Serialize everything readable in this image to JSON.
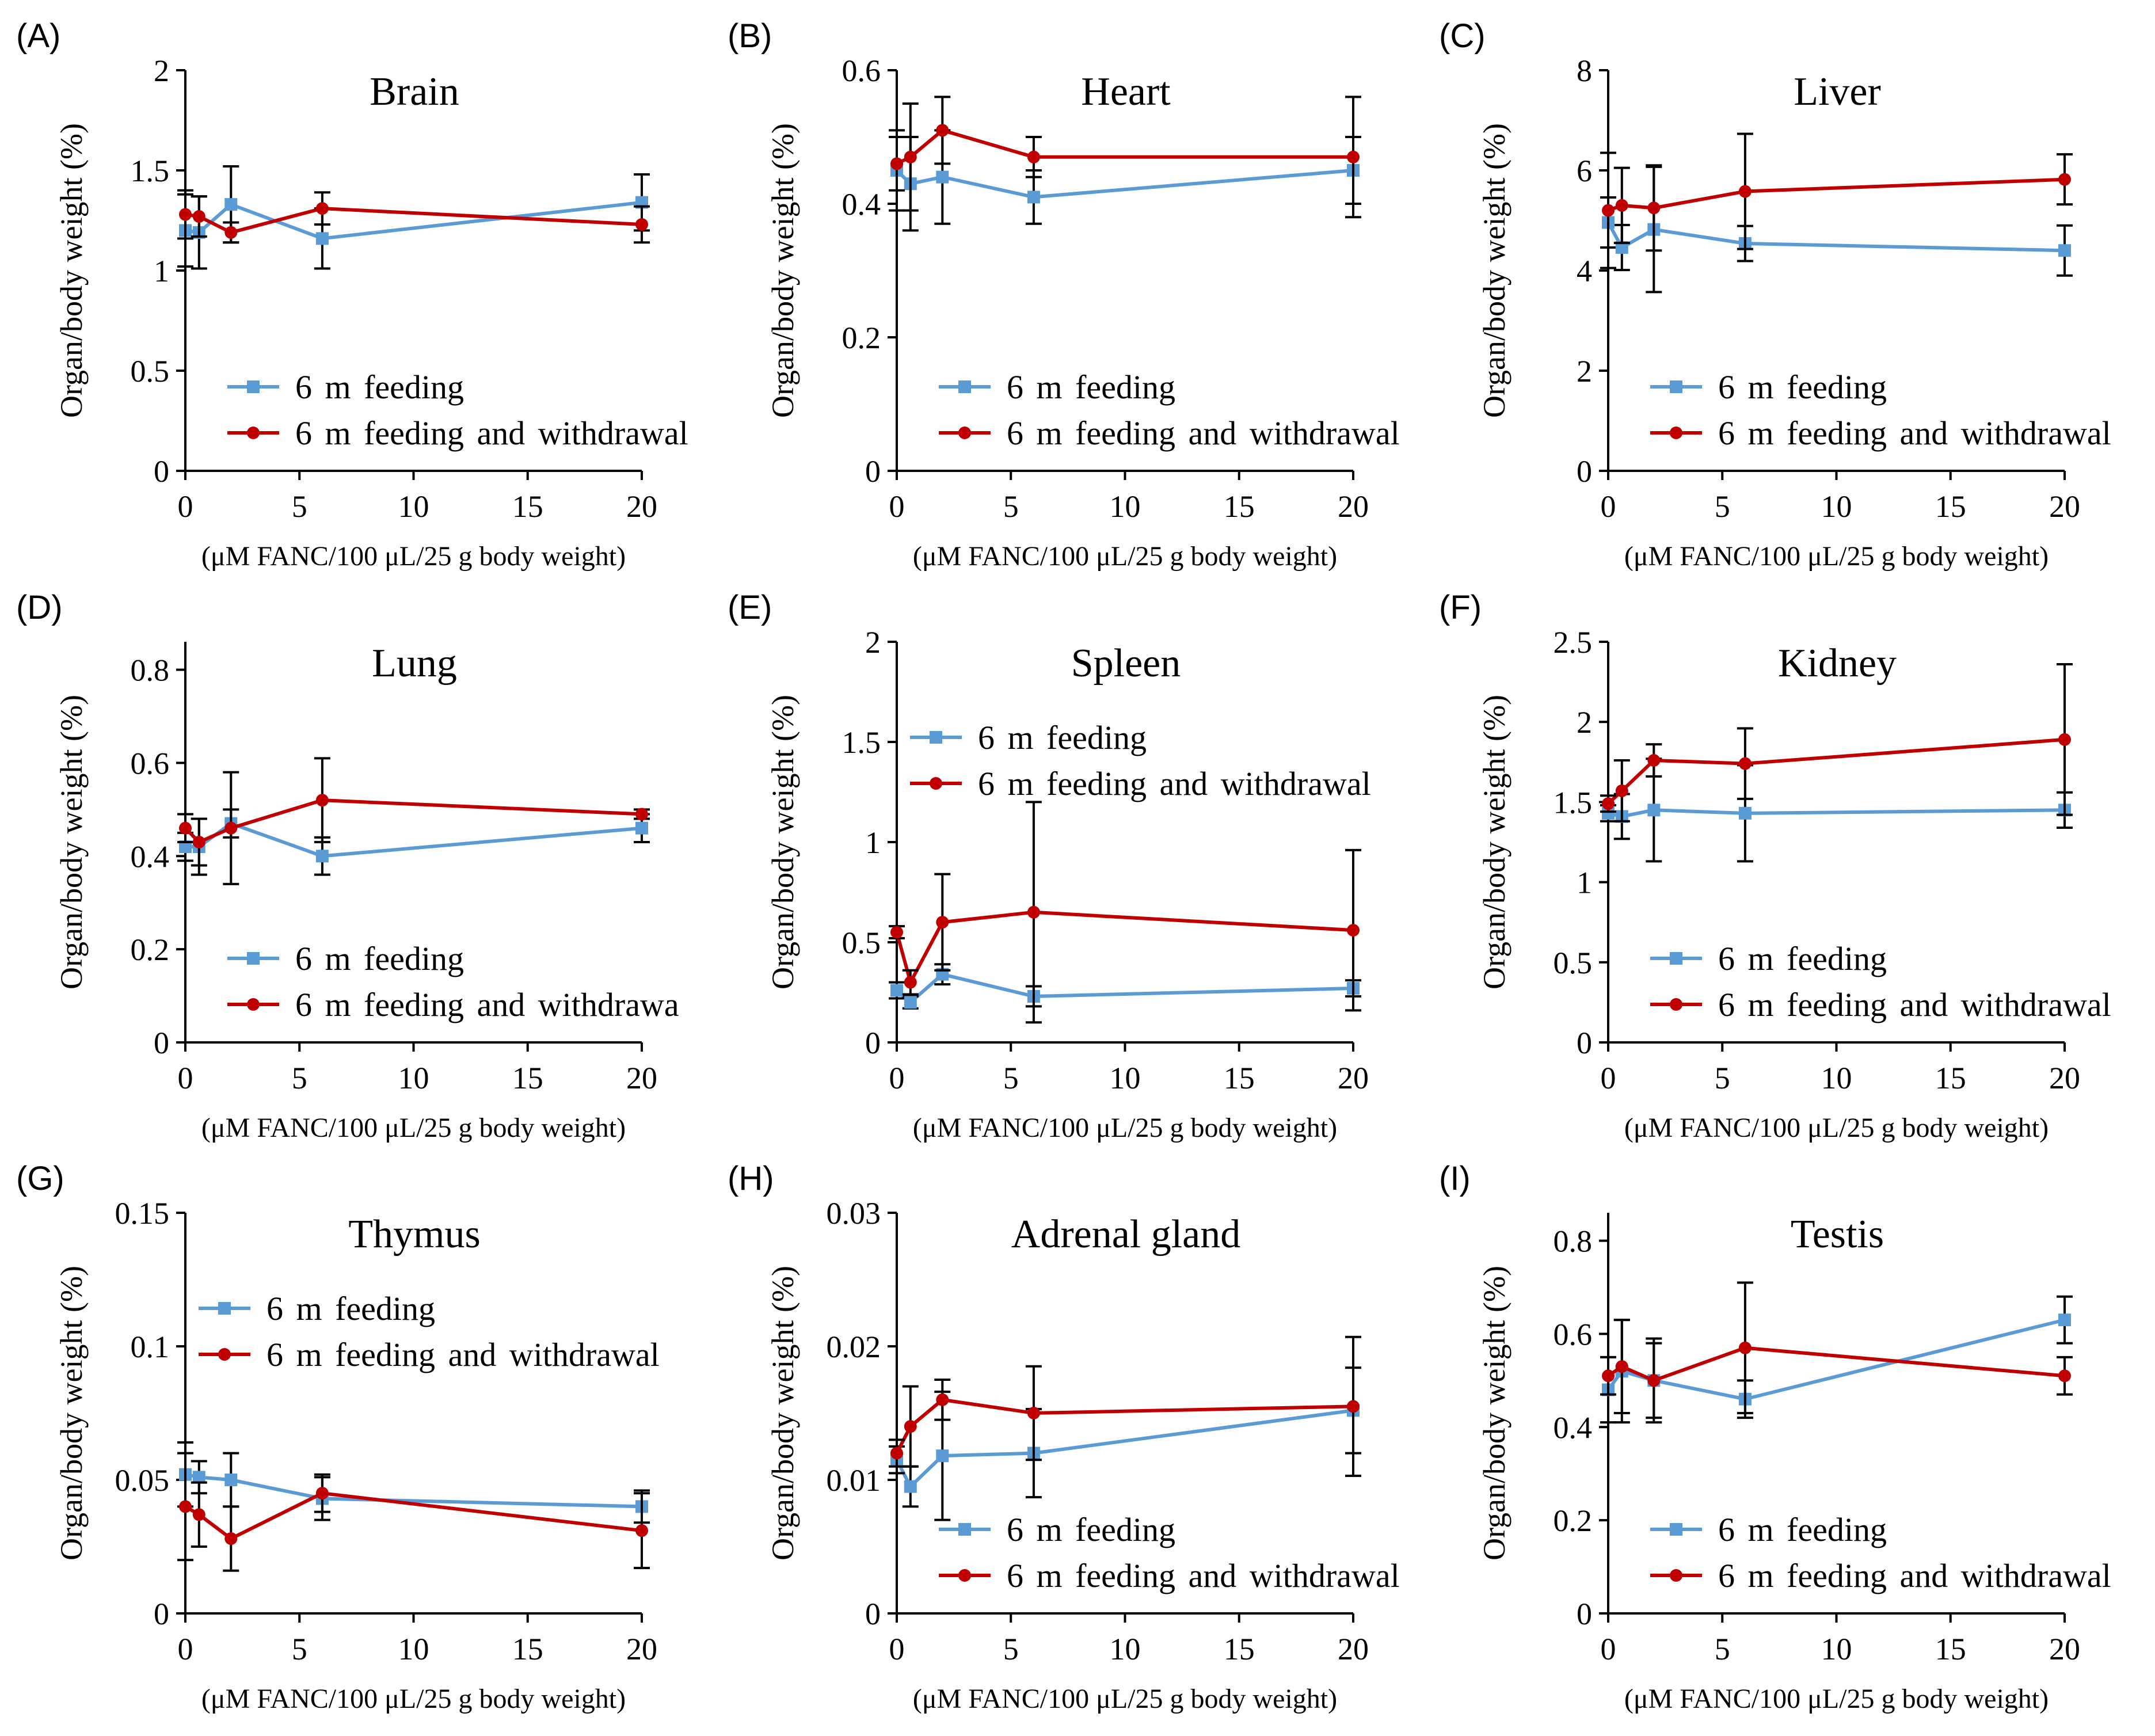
{
  "colors": {
    "feeding": "#5B9BD5",
    "withdrawal": "#C00000",
    "axis": "#000000",
    "error": "#000000"
  },
  "chart_data": [
    {
      "type": "line",
      "panel": "(A)",
      "title": "Brain",
      "xlabel": "(μM FANC/100  μL/25 g body weight)",
      "ylabel": "Organ/body  weight  (%)",
      "x": [
        0,
        0.6,
        2,
        6,
        20
      ],
      "xlim": [
        0,
        20
      ],
      "xticks": [
        0,
        5,
        10,
        15,
        20
      ],
      "ylim": [
        0,
        2
      ],
      "yticks": [
        "0",
        "0.5",
        "1",
        "1.5",
        "2"
      ],
      "legend": "bottom-left",
      "series": [
        {
          "name": "6 m feeding",
          "values": [
            1.2,
            1.19,
            1.33,
            1.16,
            1.34
          ],
          "errors": [
            0.18,
            0.18,
            0.19,
            0.15,
            0.14
          ]
        },
        {
          "name": "6 m feeding and withdrawal",
          "values": [
            1.28,
            1.27,
            1.19,
            1.31,
            1.23
          ],
          "errors": [
            0.12,
            0.1,
            0.05,
            0.08,
            0.09
          ]
        }
      ]
    },
    {
      "type": "line",
      "panel": "(B)",
      "title": "Heart",
      "xlabel": "(μM FANC/100  μL/25 g body weight)",
      "ylabel": "Organ/body  weight  (%)",
      "x": [
        0,
        0.6,
        2,
        6,
        20
      ],
      "xlim": [
        0,
        20
      ],
      "xticks": [
        0,
        5,
        10,
        15,
        20
      ],
      "ylim": [
        0,
        0.6
      ],
      "yticks": [
        "0",
        "0.2",
        "0.4",
        "0.6"
      ],
      "legend": "bottom-left",
      "series": [
        {
          "name": "6 m feeding",
          "values": [
            0.45,
            0.43,
            0.44,
            0.41,
            0.45
          ],
          "errors": [
            0.06,
            0.07,
            0.07,
            0.04,
            0.05
          ]
        },
        {
          "name": "6 m feeding and withdrawal",
          "values": [
            0.46,
            0.47,
            0.51,
            0.47,
            0.47
          ],
          "errors": [
            0.04,
            0.08,
            0.05,
            0.03,
            0.09
          ]
        }
      ]
    },
    {
      "type": "line",
      "panel": "(C)",
      "title": "Liver",
      "xlabel": "(μM FANC/100  μL/25 g body weight)",
      "ylabel": "Organ/body  weight  (%)",
      "x": [
        0,
        0.6,
        2,
        6,
        20
      ],
      "xlim": [
        0,
        20
      ],
      "xticks": [
        0,
        5,
        10,
        15,
        20
      ],
      "ylim": [
        0,
        8
      ],
      "yticks": [
        "0",
        "2",
        "4",
        "6",
        "8"
      ],
      "legend": "bottom-left",
      "series": [
        {
          "name": "6 m feeding",
          "values": [
            4.96,
            4.46,
            4.82,
            4.54,
            4.4
          ],
          "errors": [
            0.5,
            0.45,
            1.25,
            0.35,
            0.5
          ]
        },
        {
          "name": "6 m feeding and withdrawal",
          "values": [
            5.2,
            5.3,
            5.25,
            5.58,
            5.82
          ],
          "errors": [
            1.15,
            0.75,
            0.85,
            1.15,
            0.5
          ]
        }
      ]
    },
    {
      "type": "line",
      "panel": "(D)",
      "title": "Lung",
      "xlabel": "(μM FANC/100  μL/25 g body weight)",
      "ylabel": "Organ/body  weight  (%)",
      "x": [
        0,
        0.6,
        2,
        6,
        20
      ],
      "xlim": [
        0,
        20
      ],
      "xticks": [
        0,
        5,
        10,
        15,
        20
      ],
      "ylim": [
        0,
        0.86
      ],
      "yticks": [
        "0",
        "0.2",
        "0.4",
        "0.6",
        "0.8"
      ],
      "legend": "bottom-left",
      "series": [
        {
          "name": "6 m feeding",
          "values": [
            0.42,
            0.42,
            0.47,
            0.4,
            0.46
          ],
          "errors": [
            0.03,
            0.06,
            0.03,
            0.04,
            0.03
          ]
        },
        {
          "name": "6 m feeding and withdrawa",
          "values": [
            0.46,
            0.43,
            0.46,
            0.52,
            0.49
          ],
          "errors": [
            0.03,
            0.05,
            0.12,
            0.09,
            0.01
          ]
        }
      ]
    },
    {
      "type": "line",
      "panel": "(E)",
      "title": "Spleen",
      "xlabel": "(μM FANC/100  μL/25 g body weight)",
      "ylabel": "Organ/body  weight  (%)",
      "x": [
        0,
        0.6,
        2,
        6,
        20
      ],
      "xlim": [
        0,
        20
      ],
      "xticks": [
        0,
        5,
        10,
        15,
        20
      ],
      "ylim": [
        0,
        2
      ],
      "yticks": [
        "0",
        "0.5",
        "1",
        "1.5",
        "2"
      ],
      "legend": "top-left",
      "series": [
        {
          "name": "6 m feeding",
          "values": [
            0.26,
            0.2,
            0.34,
            0.23,
            0.27
          ],
          "errors": [
            0.04,
            0.03,
            0.05,
            0.05,
            0.04
          ]
        },
        {
          "name": "6 m feeding and withdrawal",
          "values": [
            0.55,
            0.3,
            0.6,
            0.65,
            0.56
          ],
          "errors": [
            0.03,
            0.06,
            0.24,
            0.55,
            0.4
          ]
        }
      ]
    },
    {
      "type": "line",
      "panel": "(F)",
      "title": "Kidney",
      "xlabel": "(μM FANC/100  μL/25 g body weight)",
      "ylabel": "Organ/body  weight  (%)",
      "x": [
        0,
        0.6,
        2,
        6,
        20
      ],
      "xlim": [
        0,
        20
      ],
      "xticks": [
        0,
        5,
        10,
        15,
        20
      ],
      "ylim": [
        0,
        2.5
      ],
      "yticks": [
        "0",
        "0.5",
        "1",
        "1.5",
        "2",
        "2.5"
      ],
      "legend": "bottom-left",
      "series": [
        {
          "name": "6 m feeding",
          "values": [
            1.43,
            1.41,
            1.45,
            1.43,
            1.45
          ],
          "errors": [
            0.05,
            0.14,
            0.32,
            0.3,
            0.11
          ]
        },
        {
          "name": "6 m feeding and withdrawal",
          "values": [
            1.49,
            1.57,
            1.76,
            1.74,
            1.89
          ],
          "errors": [
            0.05,
            0.19,
            0.1,
            0.22,
            0.47
          ]
        }
      ]
    },
    {
      "type": "line",
      "panel": "(G)",
      "title": "Thymus",
      "xlabel": "(μM FANC/100  μL/25 g body weight)",
      "ylabel": "Organ/body  weight  (%)",
      "x": [
        0,
        0.6,
        2,
        6,
        20
      ],
      "xlim": [
        0,
        20
      ],
      "xticks": [
        0,
        5,
        10,
        15,
        20
      ],
      "ylim": [
        0,
        0.15
      ],
      "yticks": [
        "0",
        "0.05",
        "0.1",
        "0.15"
      ],
      "legend": "top-left",
      "series": [
        {
          "name": "6 m feeding",
          "values": [
            0.052,
            0.051,
            0.05,
            0.043,
            0.04
          ],
          "errors": [
            0.012,
            0.006,
            0.01,
            0.008,
            0.006
          ]
        },
        {
          "name": "6 m feeding and withdrawal",
          "values": [
            0.04,
            0.037,
            0.028,
            0.045,
            0.031
          ],
          "errors": [
            0.02,
            0.012,
            0.012,
            0.007,
            0.014
          ]
        }
      ]
    },
    {
      "type": "line",
      "panel": "(H)",
      "title": "Adrenal gland",
      "xlabel": "(μM FANC/100  μL/25 g body weight)",
      "ylabel": "Organ/body  weight  (%)",
      "x": [
        0,
        0.6,
        2,
        6,
        20
      ],
      "xlim": [
        0,
        20
      ],
      "xticks": [
        0,
        5,
        10,
        15,
        20
      ],
      "ylim": [
        0,
        0.03
      ],
      "yticks": [
        "0",
        "0.01",
        "0.02",
        "0.03"
      ],
      "legend": "bottom-left",
      "series": [
        {
          "name": "6 m feeding",
          "values": [
            0.0115,
            0.0095,
            0.0118,
            0.012,
            0.0152
          ],
          "errors": [
            0.001,
            0.0015,
            0.0048,
            0.0033,
            0.0032
          ]
        },
        {
          "name": "6 m feeding and withdrawal",
          "values": [
            0.012,
            0.014,
            0.016,
            0.015,
            0.0155
          ],
          "errors": [
            0.001,
            0.003,
            0.0015,
            0.0035,
            0.0052
          ]
        }
      ]
    },
    {
      "type": "line",
      "panel": "(I)",
      "title": "Testis",
      "xlabel": "(μM FANC/100  μL/25 g body weight)",
      "ylabel": "Organ/body  weight  (%)",
      "x": [
        0,
        0.6,
        2,
        6,
        20
      ],
      "xlim": [
        0,
        20
      ],
      "xticks": [
        0,
        5,
        10,
        15,
        20
      ],
      "ylim": [
        0,
        0.86
      ],
      "yticks": [
        "0",
        "0.2",
        "0.4",
        "0.6",
        "0.8"
      ],
      "legend": "bottom-left",
      "series": [
        {
          "name": "6 m feeding",
          "values": [
            0.48,
            0.52,
            0.5,
            0.46,
            0.63
          ],
          "errors": [
            0.07,
            0.11,
            0.08,
            0.04,
            0.05
          ]
        },
        {
          "name": "6 m feeding and withdrawal",
          "values": [
            0.51,
            0.53,
            0.5,
            0.57,
            0.51
          ],
          "errors": [
            0.04,
            0.1,
            0.09,
            0.14,
            0.04
          ]
        }
      ]
    }
  ]
}
